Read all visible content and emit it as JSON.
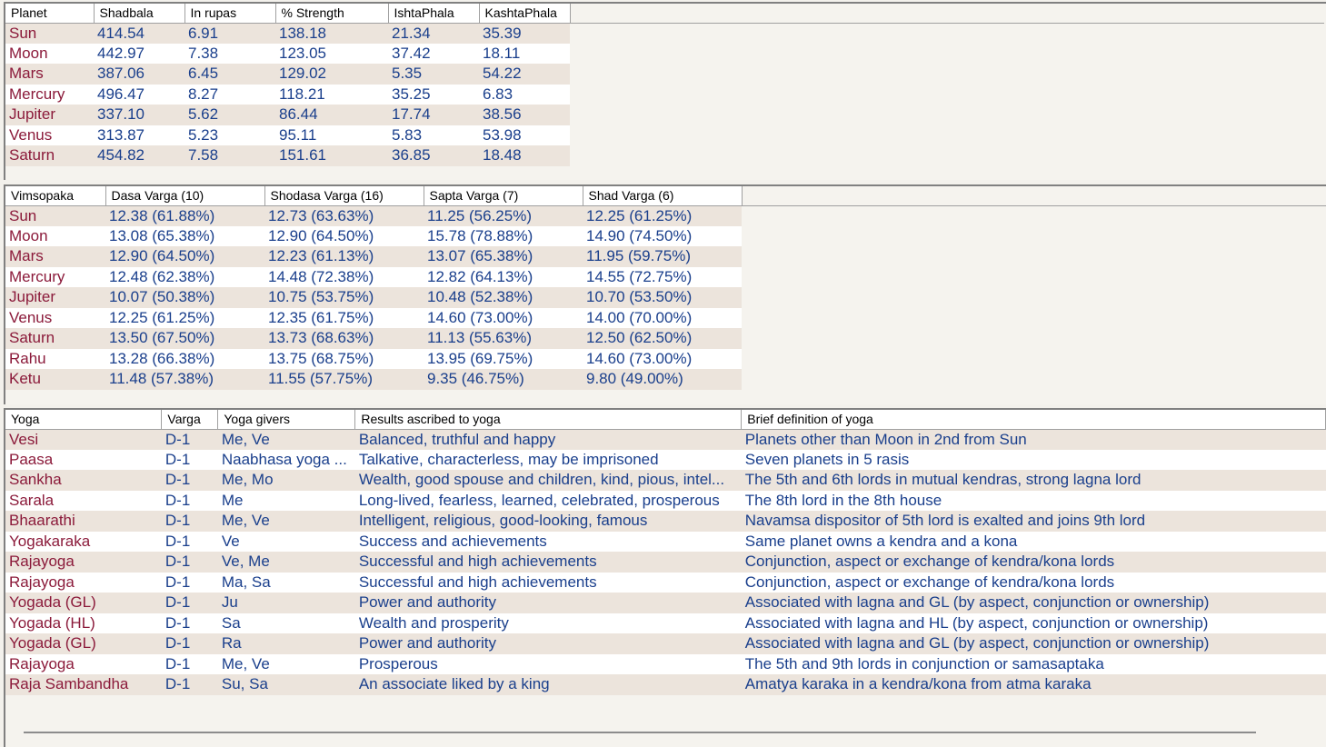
{
  "shadbala": {
    "headers": [
      "Planet",
      "Shadbala",
      "In rupas",
      "% Strength",
      "IshtaPhala",
      "KashtaPhala"
    ],
    "rows": [
      [
        "Sun",
        "414.54",
        "6.91",
        "138.18",
        "21.34",
        "35.39"
      ],
      [
        "Moon",
        "442.97",
        "7.38",
        "123.05",
        "37.42",
        "18.11"
      ],
      [
        "Mars",
        "387.06",
        "6.45",
        "129.02",
        "5.35",
        "54.22"
      ],
      [
        "Mercury",
        "496.47",
        "8.27",
        "118.21",
        "35.25",
        "6.83"
      ],
      [
        "Jupiter",
        "337.10",
        "5.62",
        "86.44",
        "17.74",
        "38.56"
      ],
      [
        "Venus",
        "313.87",
        "5.23",
        "95.11",
        "5.83",
        "53.98"
      ],
      [
        "Saturn",
        "454.82",
        "7.58",
        "151.61",
        "36.85",
        "18.48"
      ]
    ]
  },
  "vimsopaka": {
    "headers": [
      "Vimsopaka",
      "Dasa Varga (10)",
      "Shodasa Varga (16)",
      "Sapta Varga (7)",
      "Shad Varga (6)"
    ],
    "rows": [
      [
        "Sun",
        "12.38  (61.88%)",
        "12.73  (63.63%)",
        "11.25  (56.25%)",
        "12.25  (61.25%)"
      ],
      [
        "Moon",
        "13.08  (65.38%)",
        "12.90  (64.50%)",
        "15.78  (78.88%)",
        "14.90  (74.50%)"
      ],
      [
        "Mars",
        "12.90  (64.50%)",
        "12.23  (61.13%)",
        "13.07  (65.38%)",
        "11.95  (59.75%)"
      ],
      [
        "Mercury",
        "12.48  (62.38%)",
        "14.48  (72.38%)",
        "12.82  (64.13%)",
        "14.55  (72.75%)"
      ],
      [
        "Jupiter",
        "10.07  (50.38%)",
        "10.75  (53.75%)",
        "10.48  (52.38%)",
        "10.70  (53.50%)"
      ],
      [
        "Venus",
        "12.25  (61.25%)",
        "12.35  (61.75%)",
        "14.60  (73.00%)",
        "14.00  (70.00%)"
      ],
      [
        "Saturn",
        "13.50  (67.50%)",
        "13.73  (68.63%)",
        "11.13  (55.63%)",
        "12.50  (62.50%)"
      ],
      [
        "Rahu",
        "13.28  (66.38%)",
        "13.75  (68.75%)",
        "13.95  (69.75%)",
        "14.60  (73.00%)"
      ],
      [
        "Ketu",
        "11.48  (57.38%)",
        "11.55  (57.75%)",
        "9.35  (46.75%)",
        "9.80  (49.00%)"
      ]
    ]
  },
  "yoga": {
    "headers": [
      "Yoga",
      "Varga",
      "Yoga givers",
      "Results ascribed to yoga",
      "Brief definition of yoga"
    ],
    "rows": [
      [
        "Vesi",
        "D-1",
        "Me, Ve",
        "Balanced, truthful and happy",
        "Planets other than Moon in 2nd from Sun"
      ],
      [
        "Paasa",
        "D-1",
        "Naabhasa yoga ...",
        "Talkative, characterless, may be imprisoned",
        "Seven planets in 5 rasis"
      ],
      [
        "Sankha",
        "D-1",
        "Me, Mo",
        "Wealth, good spouse and children, kind, pious, intel...",
        "The 5th and 6th lords in mutual kendras, strong lagna lord"
      ],
      [
        "Sarala",
        "D-1",
        "Me",
        "Long-lived, fearless, learned, celebrated, prosperous",
        "The 8th lord in the 8th house"
      ],
      [
        "Bhaarathi",
        "D-1",
        "Me, Ve",
        "Intelligent, religious, good-looking, famous",
        "Navamsa dispositor of 5th lord is exalted and joins 9th lord"
      ],
      [
        "Yogakaraka",
        "D-1",
        "Ve",
        "Success and achievements",
        "Same planet owns a kendra and a kona"
      ],
      [
        "Rajayoga",
        "D-1",
        "Ve, Me",
        "Successful and high achievements",
        "Conjunction, aspect or exchange of kendra/kona lords"
      ],
      [
        "Rajayoga",
        "D-1",
        "Ma, Sa",
        "Successful and high achievements",
        "Conjunction, aspect or exchange of kendra/kona lords"
      ],
      [
        "Yogada (GL)",
        "D-1",
        "Ju",
        "Power and authority",
        "Associated with lagna and GL (by aspect, conjunction or ownership)"
      ],
      [
        "Yogada (HL)",
        "D-1",
        "Sa",
        "Wealth and prosperity",
        "Associated with lagna and HL (by aspect, conjunction or ownership)"
      ],
      [
        "Yogada (GL)",
        "D-1",
        "Ra",
        "Power and authority",
        "Associated with lagna and GL (by aspect, conjunction or ownership)"
      ],
      [
        "Rajayoga",
        "D-1",
        "Me, Ve",
        "Prosperous",
        "The 5th and 9th lords in conjunction or samasaptaka"
      ],
      [
        "Raja Sambandha",
        "D-1",
        "Su, Sa",
        "An associate liked by a king",
        "Amatya karaka in a kendra/kona from atma karaka"
      ]
    ]
  }
}
